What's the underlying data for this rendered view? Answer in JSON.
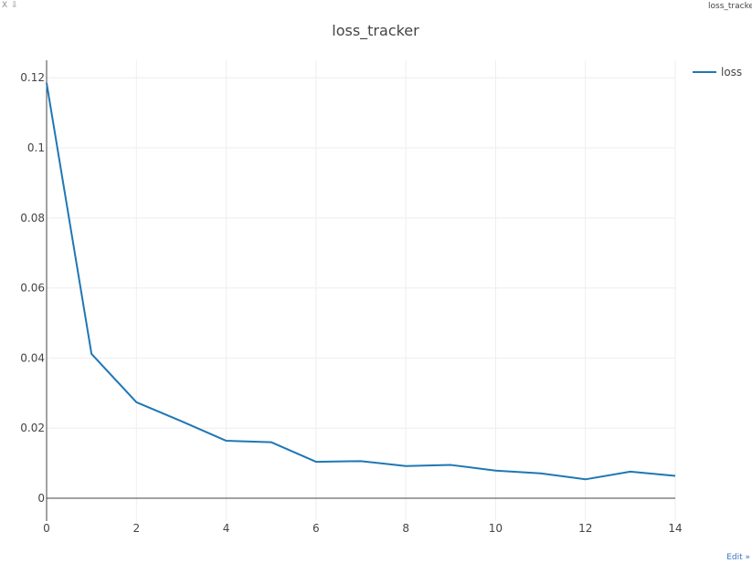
{
  "toolbar": {
    "close_glyph": "X",
    "download_glyph": "⇩"
  },
  "window": {
    "title": "loss_tracker"
  },
  "edit_link": "Edit »",
  "colors": {
    "series": "#1f77b4",
    "grid": "#eeeeee",
    "axis": "#444444",
    "link": "#3a74c2"
  },
  "chart_data": {
    "type": "line",
    "title": "loss_tracker",
    "xlabel": "",
    "ylabel": "",
    "xlim": [
      0,
      14
    ],
    "ylim": [
      -0.0065,
      0.125
    ],
    "x_ticks": [
      0,
      2,
      4,
      6,
      8,
      10,
      12,
      14
    ],
    "y_ticks": [
      0,
      0.02,
      0.04,
      0.06,
      0.08,
      0.1,
      0.12
    ],
    "grid": true,
    "legend_position": "top-right",
    "x": [
      0,
      1,
      2,
      3,
      4,
      5,
      6,
      7,
      8,
      9,
      10,
      11,
      12,
      13,
      14
    ],
    "series": [
      {
        "name": "loss",
        "values": [
          0.1185,
          0.0412,
          0.0274,
          0.022,
          0.0164,
          0.016,
          0.0104,
          0.0106,
          0.0092,
          0.0095,
          0.0079,
          0.0071,
          0.0054,
          0.0076,
          0.0064
        ]
      }
    ]
  }
}
